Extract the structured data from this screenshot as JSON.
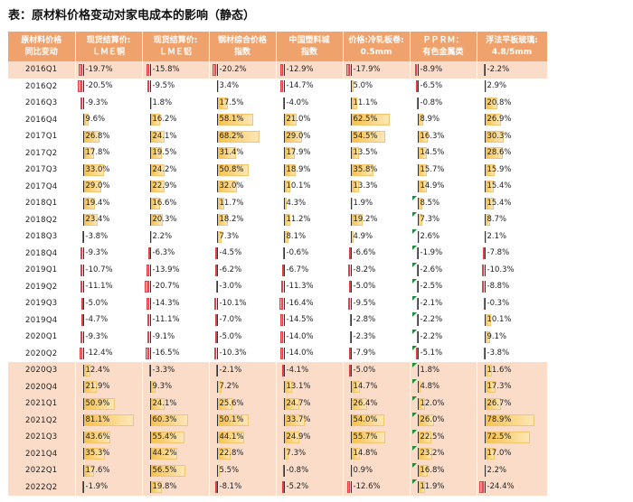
{
  "title": "表：原材料价格变动对家电成本的影响（静态）",
  "colors": {
    "header_bg": "#f0a26c",
    "highlight_row": "#fbdcc8",
    "positive_bar": "#f7c14a",
    "negative_bar": "#e8383a",
    "flag": "#1e8c3a"
  },
  "columns": [
    "原材料价格\n同比变动",
    "现货结算价:\nＬＭＥ铜",
    "现货结算价:\nＬＭＥ铝",
    "钢材综合价格\n指数",
    "中国塑料城\n指数",
    "价格:冷轧板卷:\n0.5mm",
    "ＰＰＲＭ：\n有色金属类",
    "浮法平板玻璃:\n4.8/5mm"
  ],
  "rows": [
    {
      "q": "2016Q1",
      "vals": [
        "-19.7%",
        "-15.8%",
        "-20.2%",
        "-12.9%",
        "-17.9%",
        "-8.9%",
        "-2.2%"
      ],
      "hl": true
    },
    {
      "q": "2016Q2",
      "vals": [
        "-20.5%",
        "-9.5%",
        "3.4%",
        "-14.7%",
        "5.0%",
        "-6.5%",
        "2.9%"
      ],
      "hl": false
    },
    {
      "q": "2016Q3",
      "vals": [
        "-9.3%",
        "1.8%",
        "17.5%",
        "-4.0%",
        "11.1%",
        "-0.8%",
        "20.8%"
      ],
      "hl": false
    },
    {
      "q": "2016Q4",
      "vals": [
        "9.6%",
        "16.2%",
        "58.1%",
        "21.0%",
        "62.5%",
        "8.9%",
        "26.9%"
      ],
      "hl": false
    },
    {
      "q": "2017Q1",
      "vals": [
        "26.8%",
        "24.1%",
        "68.2%",
        "29.0%",
        "54.5%",
        "16.3%",
        "30.3%"
      ],
      "hl": false
    },
    {
      "q": "2017Q2",
      "vals": [
        "17.8%",
        "19.5%",
        "31.4%",
        "17.9%",
        "13.5%",
        "14.5%",
        "28.6%"
      ],
      "hl": false
    },
    {
      "q": "2017Q3",
      "vals": [
        "33.0%",
        "24.2%",
        "50.8%",
        "18.9%",
        "35.8%",
        "15.7%",
        "15.9%"
      ],
      "hl": false
    },
    {
      "q": "2017Q4",
      "vals": [
        "29.0%",
        "22.9%",
        "32.0%",
        "10.1%",
        "13.3%",
        "14.9%",
        "15.4%"
      ],
      "hl": false
    },
    {
      "q": "2018Q1",
      "vals": [
        "19.4%",
        "16.6%",
        "11.7%",
        "4.3%",
        "1.9%",
        "8.5%",
        "15.4%"
      ],
      "hl": false
    },
    {
      "q": "2018Q2",
      "vals": [
        "23.4%",
        "20.3%",
        "18.2%",
        "11.2%",
        "19.2%",
        "7.3%",
        "8.7%"
      ],
      "hl": false
    },
    {
      "q": "2018Q3",
      "vals": [
        "-3.8%",
        "2.2%",
        "7.3%",
        "8.1%",
        "4.9%",
        "2.6%",
        "2.1%"
      ],
      "hl": false
    },
    {
      "q": "2018Q4",
      "vals": [
        "-9.3%",
        "-6.3%",
        "-4.5%",
        "-0.6%",
        "-6.6%",
        "-1.9%",
        "-7.8%"
      ],
      "hl": false
    },
    {
      "q": "2019Q1",
      "vals": [
        "-10.7%",
        "-13.9%",
        "-6.2%",
        "-6.7%",
        "-8.2%",
        "-2.6%",
        "-10.3%"
      ],
      "hl": false
    },
    {
      "q": "2019Q2",
      "vals": [
        "-11.1%",
        "-20.7%",
        "-3.0%",
        "-11.3%",
        "-5.0%",
        "-2.5%",
        "-8.8%"
      ],
      "hl": false
    },
    {
      "q": "2019Q3",
      "vals": [
        "-5.0%",
        "-14.3%",
        "-10.1%",
        "-16.4%",
        "-9.5%",
        "-2.1%",
        "-0.3%"
      ],
      "hl": false
    },
    {
      "q": "2019Q4",
      "vals": [
        "-4.7%",
        "-11.1%",
        "-7.0%",
        "-14.5%",
        "-2.8%",
        "-2.2%",
        "10.1%"
      ],
      "hl": false
    },
    {
      "q": "2020Q1",
      "vals": [
        "-9.3%",
        "-9.1%",
        "-5.0%",
        "-14.0%",
        "-2.3%",
        "-2.2%",
        "9.1%"
      ],
      "hl": false
    },
    {
      "q": "2020Q2",
      "vals": [
        "-12.4%",
        "-16.5%",
        "-10.3%",
        "-14.0%",
        "-7.9%",
        "-5.1%",
        "-3.8%"
      ],
      "hl": false
    },
    {
      "q": "2020Q3",
      "vals": [
        "12.4%",
        "-3.3%",
        "-2.1%",
        "-4.1%",
        "-5.0%",
        "1.8%",
        "11.6%"
      ],
      "hl": true
    },
    {
      "q": "2020Q4",
      "vals": [
        "21.9%",
        "9.3%",
        "7.2%",
        "13.1%",
        "14.7%",
        "4.8%",
        "17.3%"
      ],
      "hl": true
    },
    {
      "q": "2021Q1",
      "vals": [
        "50.9%",
        "24.1%",
        "25.6%",
        "24.7%",
        "26.4%",
        "12.0%",
        "26.7%"
      ],
      "hl": true
    },
    {
      "q": "2021Q2",
      "vals": [
        "81.1%",
        "60.3%",
        "50.1%",
        "33.7%",
        "54.0%",
        "26.0%",
        "78.9%"
      ],
      "hl": true
    },
    {
      "q": "2021Q3",
      "vals": [
        "43.6%",
        "55.4%",
        "44.1%",
        "24.9%",
        "55.7%",
        "22.5%",
        "72.5%"
      ],
      "hl": true
    },
    {
      "q": "2021Q4",
      "vals": [
        "35.3%",
        "44.2%",
        "22.8%",
        "7.3%",
        "14.8%",
        "23.2%",
        "17.0%"
      ],
      "hl": true
    },
    {
      "q": "2022Q1",
      "vals": [
        "17.6%",
        "56.5%",
        "5.5%",
        "-0.8%",
        "0.9%",
        "16.8%",
        "2.2%"
      ],
      "hl": true
    },
    {
      "q": "2022Q2",
      "vals": [
        "-1.9%",
        "19.8%",
        "-8.1%",
        "-5.2%",
        "-12.6%",
        "11.9%",
        "-24.4%"
      ],
      "hl": true
    }
  ],
  "flags": [
    {
      "row": 8,
      "col": 5
    },
    {
      "row": 9,
      "col": 5
    },
    {
      "row": 10,
      "col": 5
    },
    {
      "row": 11,
      "col": 5
    },
    {
      "row": 12,
      "col": 5
    },
    {
      "row": 13,
      "col": 5
    },
    {
      "row": 14,
      "col": 5
    },
    {
      "row": 15,
      "col": 5
    },
    {
      "row": 16,
      "col": 5
    },
    {
      "row": 17,
      "col": 5
    },
    {
      "row": 18,
      "col": 5
    },
    {
      "row": 19,
      "col": 5
    },
    {
      "row": 20,
      "col": 5
    },
    {
      "row": 21,
      "col": 5
    },
    {
      "row": 22,
      "col": 5
    },
    {
      "row": 23,
      "col": 5
    },
    {
      "row": 24,
      "col": 5
    },
    {
      "row": 25,
      "col": 5
    }
  ]
}
